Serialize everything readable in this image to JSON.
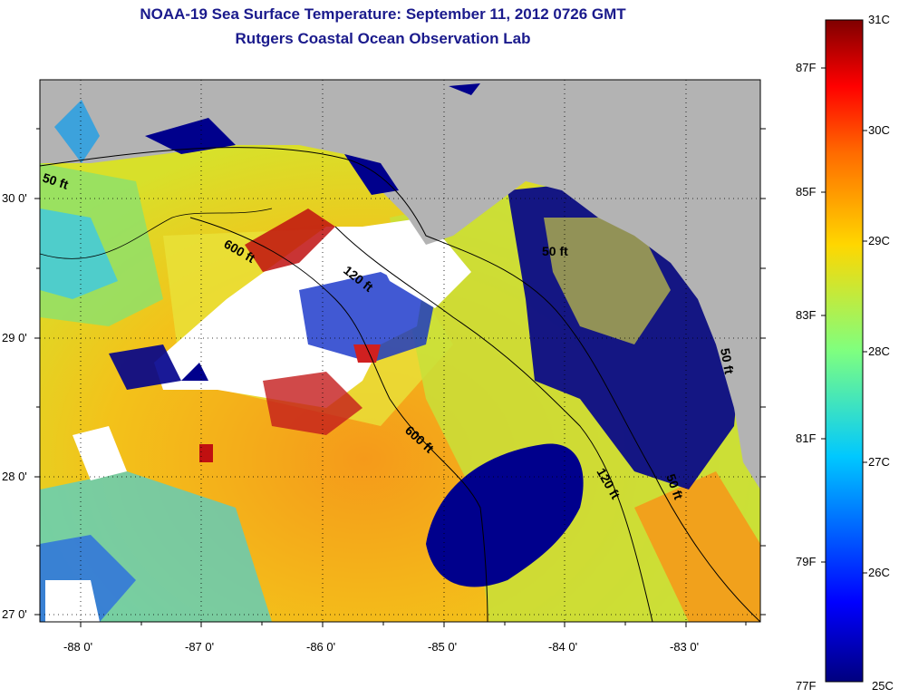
{
  "title": {
    "line1": "NOAA-19 Sea Surface Temperature:  September 11, 2012 0726 GMT",
    "line2": "Rutgers Coastal Ocean Observation Lab"
  },
  "map": {
    "lon_ticks": [
      "-88 0'",
      "-87 0'",
      "-86 0'",
      "-85 0'",
      "-84 0'",
      "-83 0'"
    ],
    "lat_ticks": [
      "30 0'",
      "29 0'",
      "28 0'",
      "27 0'"
    ],
    "contour_labels": [
      "50 ft",
      "600 ft",
      "120 ft",
      "600 ft",
      "50 ft",
      "120 ft",
      "50 ft",
      "50 ft"
    ],
    "colors": {
      "land": "#b3b3b3",
      "cloud_mask": "#ffffff",
      "cool_water": "#00008c",
      "warm_water": "#f2a000"
    }
  },
  "colorbar": {
    "celsius": [
      "31C",
      "30C",
      "29C",
      "28C",
      "27C",
      "26C",
      "25C"
    ],
    "fahrenheit": [
      "87F",
      "85F",
      "83F",
      "81F",
      "79F",
      "77F"
    ]
  }
}
